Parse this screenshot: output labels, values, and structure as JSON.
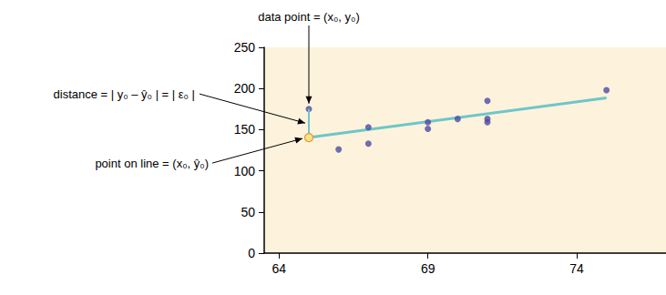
{
  "chart_data": {
    "type": "scatter",
    "xlim": [
      63.5,
      77
    ],
    "xticks": [
      64,
      69,
      74
    ],
    "ylim": [
      0,
      250
    ],
    "yticks": [
      0,
      50,
      100,
      150,
      200,
      250
    ],
    "grid": false,
    "series": [
      {
        "type": "scatter",
        "color": "#4b4ba3",
        "marker": "circle",
        "x": [
          65,
          67,
          71,
          71,
          66,
          75,
          67,
          70,
          71,
          69,
          69
        ],
        "values": [
          175,
          133,
          185,
          163,
          126,
          198,
          153,
          163,
          159,
          151,
          159
        ]
      },
      {
        "type": "line",
        "color": "#6ec6c9",
        "line_style": "solid",
        "x": [
          65,
          75
        ],
        "values": [
          140.4,
          188.7
        ]
      }
    ],
    "annotations": [
      {
        "text": "data point = (x₀, y₀)",
        "x": 65,
        "y": 175
      },
      {
        "text": "distance = | y₀ – ŷ₀ | = | ε₀ |",
        "x": 65,
        "y": 158
      },
      {
        "text": "point on line = (x₀, ŷ₀)",
        "x": 65,
        "y": 140.4
      }
    ]
  }
}
